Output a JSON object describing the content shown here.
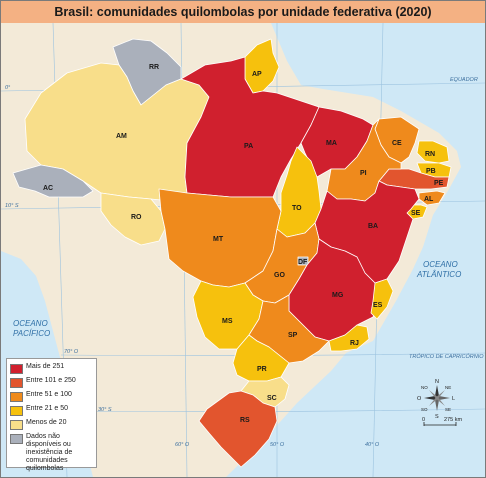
{
  "title": "Brasil: comunidades quilombolas por unidade federativa (2020)",
  "colors": {
    "ocean": "#cfe8f6",
    "land": "#f3ead8",
    "cat1": "#d0202e",
    "cat2": "#e2552e",
    "cat3": "#ef8a1c",
    "cat4": "#f6c10d",
    "cat5": "#f8de8a",
    "nodata": "#aab0bb"
  },
  "legend": [
    {
      "label": "Mais de 251",
      "color": "#d0202e"
    },
    {
      "label": "Entre 101 e 250",
      "color": "#e2552e"
    },
    {
      "label": "Entre 51 e 100",
      "color": "#ef8a1c"
    },
    {
      "label": "Entre 21 e 50",
      "color": "#f6c10d"
    },
    {
      "label": "Menos de 20",
      "color": "#f8de8a"
    },
    {
      "label": "Dados não disponíveis ou inexistência de comunidades quilombolas",
      "color": "#aab0bb"
    }
  ],
  "states": [
    {
      "abbr": "RR",
      "category": "Dados não disponíveis ou inexistência de comunidades quilombolas"
    },
    {
      "abbr": "AP",
      "category": "Entre 21 e 50"
    },
    {
      "abbr": "AM",
      "category": "Menos de 20"
    },
    {
      "abbr": "PA",
      "category": "Mais de 251"
    },
    {
      "abbr": "MA",
      "category": "Mais de 251"
    },
    {
      "abbr": "CE",
      "category": "Entre 51 e 100"
    },
    {
      "abbr": "RN",
      "category": "Entre 21 e 50"
    },
    {
      "abbr": "PB",
      "category": "Entre 21 e 50"
    },
    {
      "abbr": "PE",
      "category": "Entre 101 e 250"
    },
    {
      "abbr": "PI",
      "category": "Entre 51 e 100"
    },
    {
      "abbr": "AL",
      "category": "Entre 51 e 100"
    },
    {
      "abbr": "SE",
      "category": "Entre 21 e 50"
    },
    {
      "abbr": "AC",
      "category": "Dados não disponíveis ou inexistência de comunidades quilombolas"
    },
    {
      "abbr": "RO",
      "category": "Menos de 20"
    },
    {
      "abbr": "TO",
      "category": "Entre 21 e 50"
    },
    {
      "abbr": "BA",
      "category": "Mais de 251"
    },
    {
      "abbr": "MT",
      "category": "Entre 51 e 100"
    },
    {
      "abbr": "GO",
      "category": "Entre 51 e 100"
    },
    {
      "abbr": "DF",
      "category": "Dados não disponíveis ou inexistência de comunidades quilombolas"
    },
    {
      "abbr": "MG",
      "category": "Mais de 251"
    },
    {
      "abbr": "ES",
      "category": "Entre 21 e 50"
    },
    {
      "abbr": "MS",
      "category": "Entre 21 e 50"
    },
    {
      "abbr": "SP",
      "category": "Entre 51 e 100"
    },
    {
      "abbr": "RJ",
      "category": "Entre 21 e 50"
    },
    {
      "abbr": "PR",
      "category": "Entre 21 e 50"
    },
    {
      "abbr": "SC",
      "category": "Menos de 20"
    },
    {
      "abbr": "RS",
      "category": "Entre 101 e 250"
    }
  ],
  "labels": {
    "equator": "EQUADOR",
    "tropic": "TRÓPICO DE CAPRICÓRNIO",
    "atlantic": [
      "OCEANO",
      "ATLÂNTICO"
    ],
    "pacific": [
      "OCEANO",
      "PACÍFICO"
    ],
    "lat_0": "0°",
    "lat_10": "10° S",
    "lat_30": "30° S",
    "lon_70": "70° O",
    "lon_60": "60° O",
    "lon_50": "50° O",
    "lon_40": "40° O"
  },
  "compass": {
    "N": "N",
    "S": "S",
    "L": "L",
    "O": "O",
    "NE": "NE",
    "NO": "NO",
    "SE": "SE",
    "SO": "SO"
  },
  "scale": {
    "start": "0",
    "end": "275 km"
  }
}
